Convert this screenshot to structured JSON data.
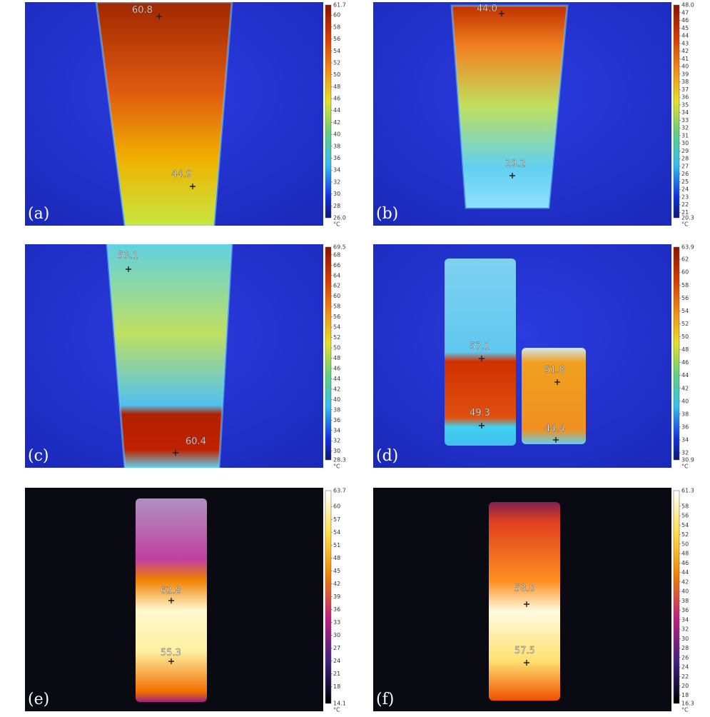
{
  "panels": [
    {
      "label": "(a)",
      "spots": [
        "60.8",
        "44.9"
      ],
      "scale": {
        "max": "61.7",
        "ticks": [
          60,
          58,
          56,
          54,
          52,
          50,
          48,
          46,
          44,
          42,
          40,
          38,
          36,
          34,
          32,
          30,
          28
        ],
        "min": "26.0",
        "unit": "°C"
      }
    },
    {
      "label": "(b)",
      "spots": [
        "44.0",
        "29.2"
      ],
      "scale": {
        "max": "48.0",
        "ticks": [
          47,
          46,
          45,
          44,
          43,
          42,
          41,
          40,
          39,
          38,
          37,
          36,
          35,
          34,
          33,
          32,
          31,
          30,
          29,
          28,
          27,
          26,
          25,
          24,
          23,
          22,
          21
        ],
        "min": "20.3",
        "unit": "°C"
      }
    },
    {
      "label": "(c)",
      "spots": [
        "53.1",
        "60.4"
      ],
      "scale": {
        "max": "69.5",
        "ticks": [
          68,
          66,
          64,
          62,
          60,
          58,
          56,
          54,
          52,
          50,
          48,
          46,
          44,
          42,
          40,
          38,
          36,
          34,
          32,
          30
        ],
        "min": "28.3",
        "unit": "°C"
      }
    },
    {
      "label": "(d)",
      "spots": [
        "57.1",
        "49.3",
        "51.8",
        "44.4"
      ],
      "scale": {
        "max": "63.9",
        "ticks": [
          62,
          60,
          58,
          56,
          54,
          52,
          50,
          48,
          46,
          44,
          42,
          40,
          38,
          36,
          34,
          32
        ],
        "min": "30.9",
        "unit": "°C"
      }
    },
    {
      "label": "(e)",
      "spots": [
        "62.8",
        "55.3"
      ],
      "scale": {
        "max": "63.7",
        "ticks": [
          60,
          57,
          54,
          51,
          48,
          45,
          42,
          39,
          36,
          33,
          30,
          27,
          24,
          21,
          18
        ],
        "min": "14.1",
        "unit": "°C"
      }
    },
    {
      "label": "(f)",
      "spots": [
        "58.0",
        "57.5"
      ],
      "scale": {
        "max": "61.3",
        "ticks": [
          58,
          56,
          54,
          52,
          50,
          48,
          46,
          44,
          42,
          40,
          38,
          36,
          34,
          32,
          30,
          28,
          26,
          24,
          22,
          20,
          18
        ],
        "min": "16.3",
        "unit": "°C"
      }
    }
  ]
}
